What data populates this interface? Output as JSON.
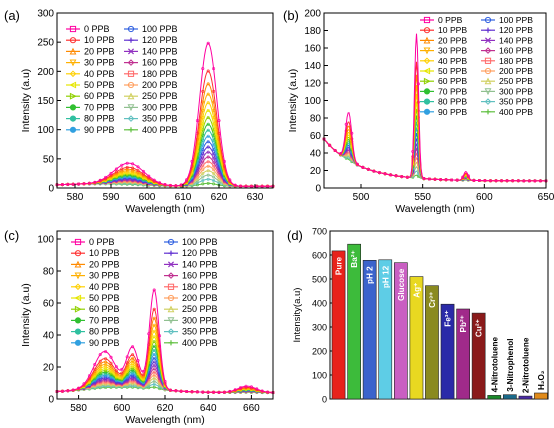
{
  "chart_data": [
    {
      "panel": "(a)",
      "type": "line",
      "xlabel": "Wavelength (nm)",
      "ylabel": "Intensity (a.u)",
      "xlim": [
        575,
        635
      ],
      "ylim": [
        0,
        300
      ],
      "xticks": [
        580,
        590,
        600,
        610,
        620,
        630
      ],
      "yticks": [
        0,
        50,
        100,
        150,
        200,
        250,
        300
      ],
      "legend": [
        "0 PPB",
        "10 PPB",
        "20 PPB",
        "30 PPB",
        "40 PPB",
        "50 PPB",
        "60 PPB",
        "70 PPB",
        "80 PPB",
        "90 PPB",
        "100 PPB",
        "120 PPB",
        "140 PPB",
        "160 PPB",
        "180 PPB",
        "200 PPB",
        "250 PPB",
        "300 PPB",
        "350 PPB",
        "400 PPB"
      ],
      "legend_position": "top-left",
      "peaks": [
        {
          "x": 595,
          "label": "minor"
        },
        {
          "x": 617,
          "label": "major"
        }
      ],
      "peak_height_0ppb": 250,
      "minor_peak_height_0ppb": 40
    },
    {
      "panel": "(b)",
      "type": "line",
      "xlabel": "Wavelength (nm)",
      "ylabel": "Intensity (a.u)",
      "xlim": [
        470,
        650
      ],
      "ylim": [
        0,
        200
      ],
      "xticks": [
        500,
        550,
        600,
        650
      ],
      "yticks": [
        0,
        20,
        40,
        60,
        80,
        100,
        120,
        140,
        160,
        180,
        200
      ],
      "legend": [
        "0 PPB",
        "10 PPB",
        "20 PPB",
        "30 PPB",
        "40 PPB",
        "50 PPB",
        "60 PPB",
        "70 PPB",
        "80 PPB",
        "90 PPB",
        "100 PPB",
        "120 PPB",
        "140 PPB",
        "160 PPB",
        "180 PPB",
        "200 PPB",
        "250 PPB",
        "300 PPB",
        "350 PPB",
        "400 PPB"
      ],
      "legend_position": "top-right",
      "peaks": [
        {
          "x": 490
        },
        {
          "x": 545
        },
        {
          "x": 585
        }
      ],
      "peak_height_0ppb": 178,
      "minor_peak_height_0ppb": 85
    },
    {
      "panel": "(c)",
      "type": "line",
      "xlabel": "Wavelength (nm)",
      "ylabel": "Intensity (a.u)",
      "xlim": [
        570,
        670
      ],
      "ylim": [
        0,
        105
      ],
      "xticks": [
        580,
        600,
        620,
        640,
        660
      ],
      "yticks": [
        0,
        20,
        40,
        60,
        80,
        100
      ],
      "legend": [
        "0 PPB",
        "10 PPB",
        "20 PPB",
        "30 PPB",
        "40 PPB",
        "50 PPB",
        "60 PPB",
        "70 PPB",
        "80 PPB",
        "90 PPB",
        "100 PPB",
        "120 PPB",
        "140 PPB",
        "160 PPB",
        "180 PPB",
        "200 PPB",
        "250 PPB",
        "300 PPB",
        "350 PPB",
        "400 PPB"
      ],
      "legend_position": "top",
      "peaks": [
        {
          "x": 592
        },
        {
          "x": 615
        },
        {
          "x": 658
        }
      ],
      "peak_height_0ppb": 95,
      "minor_peak_height_0ppb": 30
    },
    {
      "panel": "(d)",
      "type": "bar",
      "ylabel": "Intensity(a.u)",
      "ylim": [
        0,
        700
      ],
      "yticks": [
        0,
        100,
        200,
        300,
        400,
        500,
        600,
        700
      ],
      "categories": [
        "Pure",
        "Ba²⁺",
        "pH 2",
        "pH 12",
        "Glucose",
        "Ag⁺",
        "Cr³⁺",
        "Fe³⁺",
        "Pb²⁺",
        "Cu²⁺",
        "4-Nitrotoluene",
        "3-Nitrophenol",
        "2-Nitrotoluene",
        "H₂O₂"
      ],
      "values": [
        617,
        645,
        578,
        580,
        568,
        510,
        472,
        395,
        375,
        358,
        15,
        18,
        12,
        25
      ],
      "colors": [
        "#e8221b",
        "#3dbb3b",
        "#3b63cc",
        "#5ecde6",
        "#c95fc2",
        "#e8d821",
        "#8a8a20",
        "#2a2aa8",
        "#a02a8a",
        "#8a1a1a",
        "#1a8a2a",
        "#1a6a8a",
        "#4a2aa8",
        "#e08a1a"
      ]
    }
  ],
  "series_colors": [
    "#ff00a0",
    "#ff3030",
    "#ff8a00",
    "#ffb000",
    "#ffd000",
    "#e6e600",
    "#90d000",
    "#30c030",
    "#30c0a0",
    "#30a0e0",
    "#3060e0",
    "#6030d0",
    "#9030c0",
    "#c03090",
    "#ff6a6a",
    "#ffa060",
    "#d0d060",
    "#90c090",
    "#60c0c0",
    "#60c040"
  ],
  "legend_markers": [
    "square",
    "circle",
    "triangle-up",
    "triangle-down",
    "diamond",
    "triangle-left",
    "triangle-right",
    "hexagon",
    "star",
    "pentagon",
    "circle",
    "plus",
    "cross",
    "diamond",
    "square",
    "circle",
    "triangle-up",
    "triangle-down",
    "diamond",
    "plus"
  ]
}
